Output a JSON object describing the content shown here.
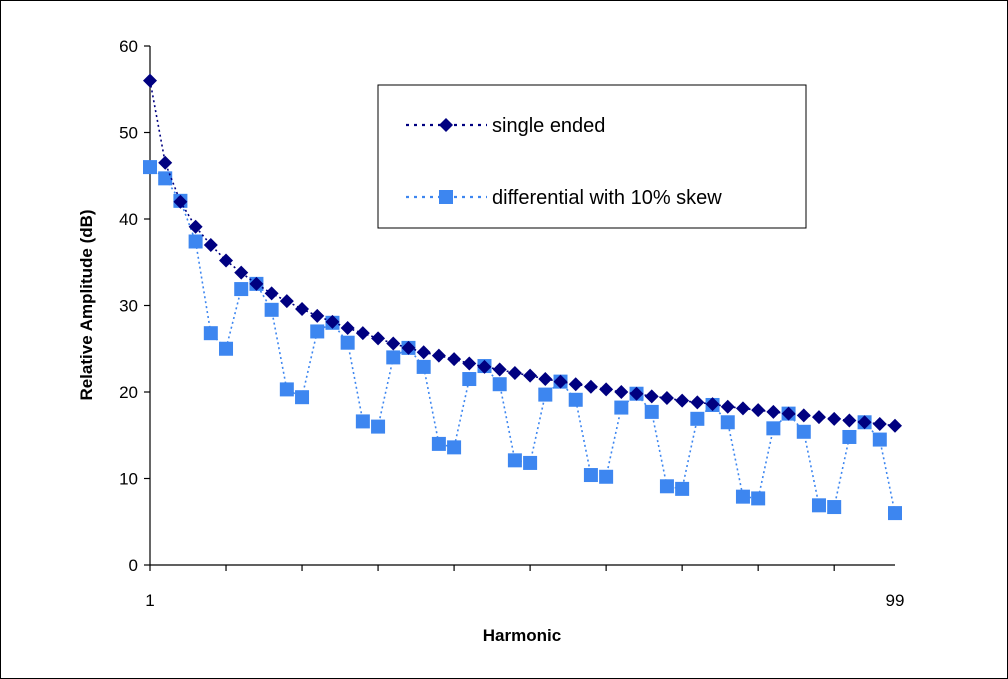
{
  "chart_data": {
    "type": "line",
    "title": "",
    "xlabel": "Harmonic",
    "ylabel": "Relative Amplitude (dB)",
    "ylim": [
      0,
      60
    ],
    "yticks": [
      0,
      10,
      20,
      30,
      40,
      50,
      60
    ],
    "xlim": [
      1,
      99
    ],
    "x_tick_labels": [
      {
        "value": 1,
        "label": "1"
      },
      {
        "value": 99,
        "label": "99"
      }
    ],
    "grid": false,
    "legend_position": "top-right",
    "x": [
      1,
      3,
      5,
      7,
      9,
      11,
      13,
      15,
      17,
      19,
      21,
      23,
      25,
      27,
      29,
      31,
      33,
      35,
      37,
      39,
      41,
      43,
      45,
      47,
      49,
      51,
      53,
      55,
      57,
      59,
      61,
      63,
      65,
      67,
      69,
      71,
      73,
      75,
      77,
      79,
      81,
      83,
      85,
      87,
      89,
      91,
      93,
      95,
      97,
      99
    ],
    "series": [
      {
        "name": "single ended",
        "color": "#000080",
        "marker": "diamond",
        "line_style": "dotted",
        "values": [
          56.0,
          46.5,
          42.0,
          39.1,
          37.0,
          35.2,
          33.8,
          32.5,
          31.4,
          30.5,
          29.6,
          28.8,
          28.1,
          27.4,
          26.8,
          26.2,
          25.6,
          25.1,
          24.6,
          24.2,
          23.8,
          23.3,
          22.9,
          22.6,
          22.2,
          21.9,
          21.5,
          21.2,
          20.9,
          20.6,
          20.3,
          20.0,
          19.8,
          19.5,
          19.3,
          19.0,
          18.8,
          18.6,
          18.3,
          18.1,
          17.9,
          17.7,
          17.5,
          17.3,
          17.1,
          16.9,
          16.7,
          16.5,
          16.3,
          16.1
        ]
      },
      {
        "name": "differential with 10% skew",
        "color": "#3d86f0",
        "marker": "square",
        "line_style": "dotted",
        "values": [
          46.0,
          44.7,
          42.1,
          37.4,
          26.8,
          25.0,
          31.9,
          32.5,
          29.5,
          20.3,
          19.4,
          27.0,
          28.0,
          25.7,
          16.6,
          16.0,
          24.0,
          25.1,
          22.9,
          14.0,
          13.6,
          21.5,
          23.0,
          20.9,
          12.1,
          11.8,
          19.7,
          21.2,
          19.1,
          10.4,
          10.2,
          18.2,
          19.8,
          17.7,
          9.1,
          8.8,
          16.9,
          18.5,
          16.5,
          7.9,
          7.7,
          15.8,
          17.5,
          15.4,
          6.9,
          6.7,
          14.8,
          16.5,
          14.5,
          6.0
        ]
      }
    ]
  }
}
